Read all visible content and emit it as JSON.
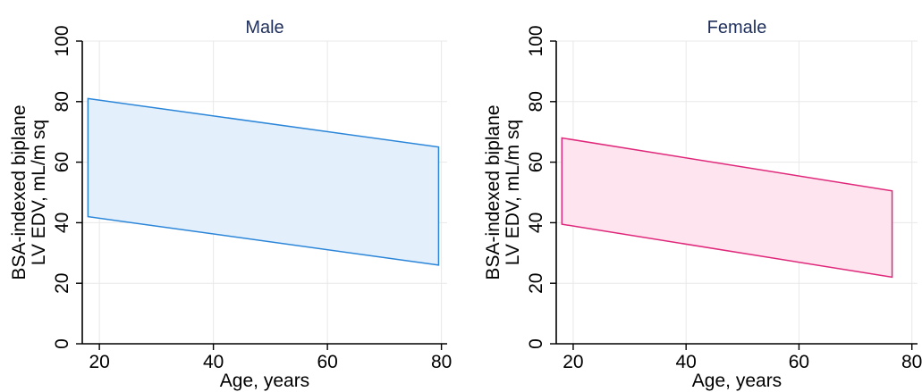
{
  "chart_data": [
    {
      "type": "area",
      "title": "Male",
      "xlabel": "Age, years",
      "ylabel_lines": [
        "BSA-indexed biplane",
        "LV EDV, mL/m sq"
      ],
      "xlim": [
        17,
        81
      ],
      "ylim": [
        0,
        100
      ],
      "xticks": [
        20,
        40,
        60,
        80
      ],
      "yticks": [
        0,
        20,
        40,
        60,
        80,
        100
      ],
      "grid": true,
      "band": {
        "x": [
          18,
          79.5
        ],
        "upper": [
          81,
          65
        ],
        "lower": [
          42,
          26
        ]
      },
      "fill_color": "#e3effb",
      "stroke_color": "#2b86d9"
    },
    {
      "type": "area",
      "title": "Female",
      "xlabel": "Age, years",
      "ylabel_lines": [
        "BSA-indexed biplane",
        "LV EDV, mL/m sq"
      ],
      "xlim": [
        17,
        81
      ],
      "ylim": [
        0,
        100
      ],
      "xticks": [
        20,
        40,
        60,
        80
      ],
      "yticks": [
        0,
        20,
        40,
        60,
        80,
        100
      ],
      "grid": true,
      "band": {
        "x": [
          18,
          76.5
        ],
        "upper": [
          68,
          50.5
        ],
        "lower": [
          39.5,
          22
        ]
      },
      "fill_color": "#fde4ef",
      "stroke_color": "#e0287a"
    }
  ]
}
